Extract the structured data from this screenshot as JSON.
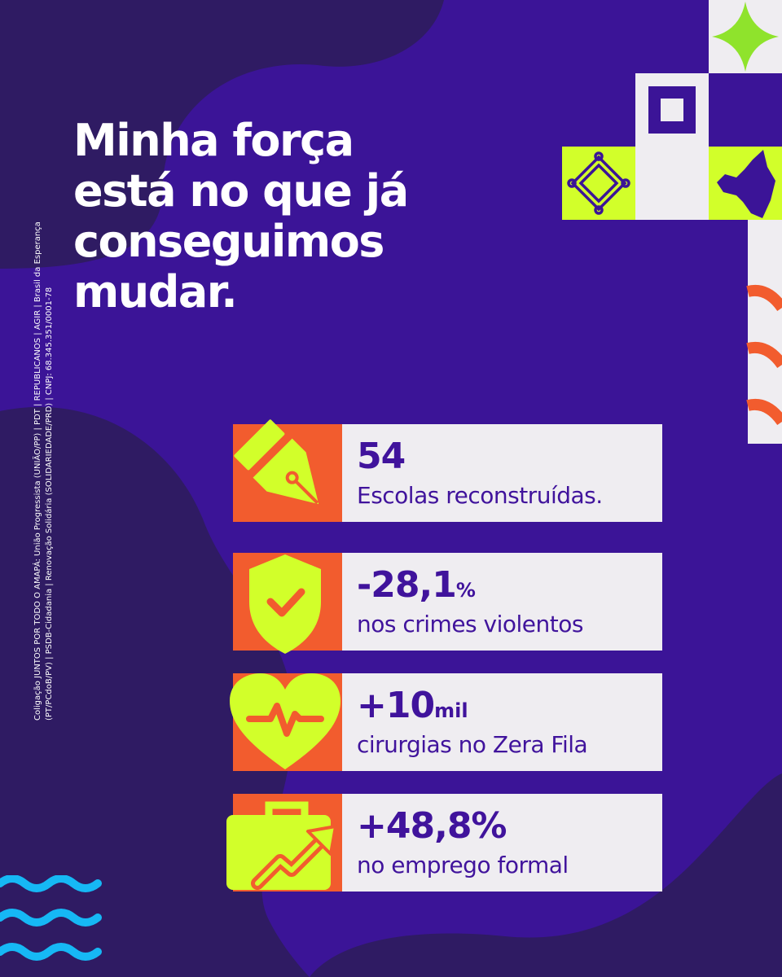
{
  "headline": [
    "Minha força",
    "está no que já",
    "conseguimos",
    "mudar."
  ],
  "legal": [
    "Coligação JUNTOS POR TODO O AMAPÁ: União Progressista (UNIÃO/PP) | PDT | REPUBLICANOS | AGIR | Brasil da Esperança",
    "(PT/PCdoB/PV) | PSDB-Cidadania | Renovação Solidária (SOLIDARIEDADE/PRD) | CNPJ: 68.345.351/0001-78"
  ],
  "stats": [
    {
      "value": "54",
      "unit": "",
      "label": "Escolas reconstruídas.",
      "icon": "fountain-pen-icon"
    },
    {
      "value": "-28,1",
      "unit": "%",
      "label": "nos crimes violentos",
      "icon": "shield-check-icon"
    },
    {
      "value": "+10",
      "unit": "mil",
      "label": "cirurgias no Zera Fila",
      "icon": "heart-pulse-icon"
    },
    {
      "value": "+48,8%",
      "unit": "",
      "label": "no emprego formal",
      "icon": "briefcase-growth-icon"
    }
  ],
  "colors": {
    "background": "#3b1497",
    "background_dark": "#2f1b63",
    "card_text": "#40139c",
    "card_background": "#efedf1",
    "icon_panel": "#f25c2e",
    "accent_lime": "#d2ff2a",
    "accent_cyan": "#16b8f5"
  }
}
